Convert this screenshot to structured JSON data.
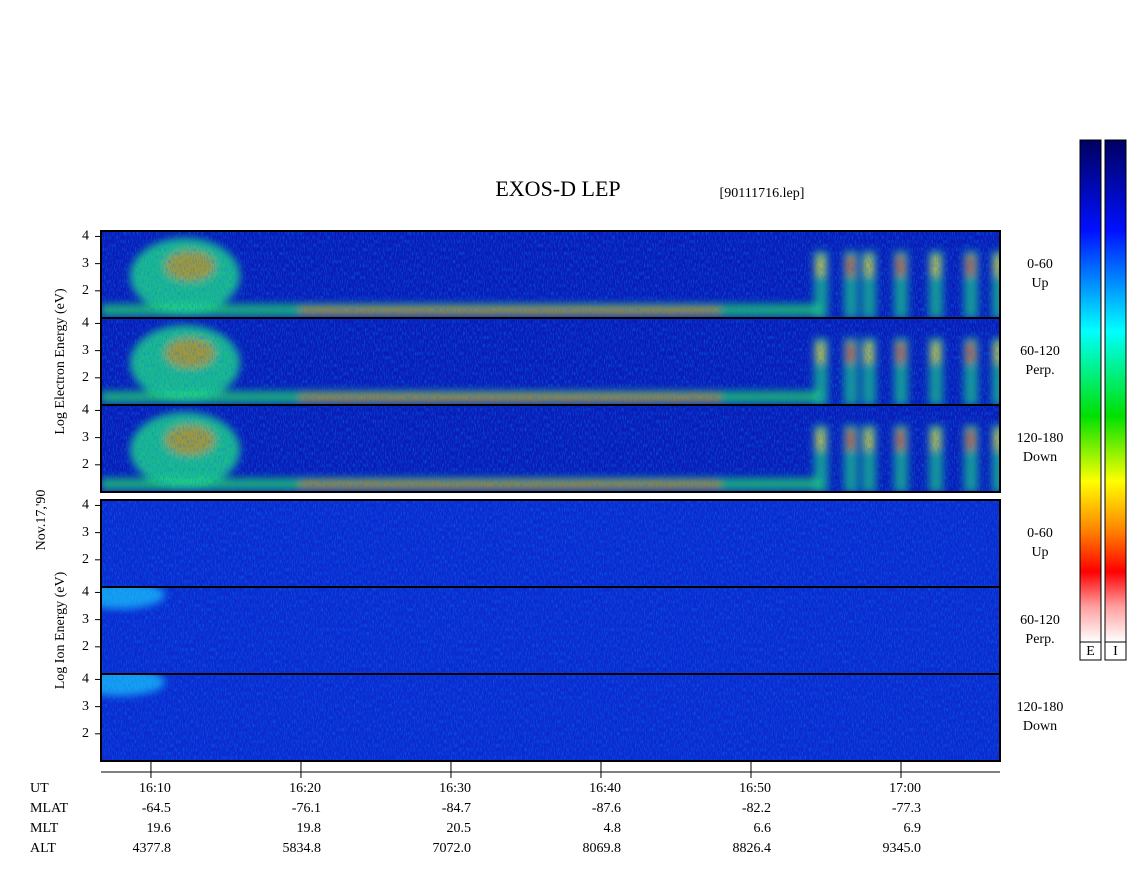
{
  "chart_data": {
    "type": "spectrogram",
    "title": "EXOS-D LEP",
    "subtitle": "[90111716.lep]",
    "date_label": "Nov.17,'90",
    "panel_groups": [
      {
        "ylabel": "Log Electron Energy (eV)",
        "species": "electron",
        "panels": [
          {
            "angle": "0-60",
            "direction": "Up"
          },
          {
            "angle": "60-120",
            "direction": "Perp."
          },
          {
            "angle": "120-180",
            "direction": "Down"
          }
        ]
      },
      {
        "ylabel": "Log Ion Energy (eV)",
        "species": "ion",
        "panels": [
          {
            "angle": "0-60",
            "direction": "Up"
          },
          {
            "angle": "60-120",
            "direction": "Perp."
          },
          {
            "angle": "120-180",
            "direction": "Down"
          }
        ]
      }
    ],
    "ylim": [
      1,
      4.2
    ],
    "yticks": [
      2,
      3,
      4
    ],
    "xlim": [
      966.67,
      1026.6
    ],
    "xticks": [
      {
        "value": 970,
        "label": "16:10"
      },
      {
        "value": 980,
        "label": "16:20"
      },
      {
        "value": 990,
        "label": "16:30"
      },
      {
        "value": 1000,
        "label": "16:40"
      },
      {
        "value": 1010,
        "label": "16:50"
      },
      {
        "value": 1020,
        "label": "17:00"
      }
    ],
    "xaxis_label": "UT",
    "ephemeris": [
      {
        "name": "MLAT",
        "values": [
          "-64.5",
          "-76.1",
          "-84.7",
          "-87.6",
          "-82.2",
          "-77.3"
        ]
      },
      {
        "name": "MLT",
        "values": [
          "19.6",
          "19.8",
          "20.5",
          "4.8",
          "6.6",
          "6.9"
        ]
      },
      {
        "name": "ALT",
        "values": [
          "4377.8",
          "5834.8",
          "7072.0",
          "8069.8",
          "8826.4",
          "9345.0"
        ]
      }
    ],
    "colorbar_labels": [
      "E",
      "I"
    ]
  }
}
